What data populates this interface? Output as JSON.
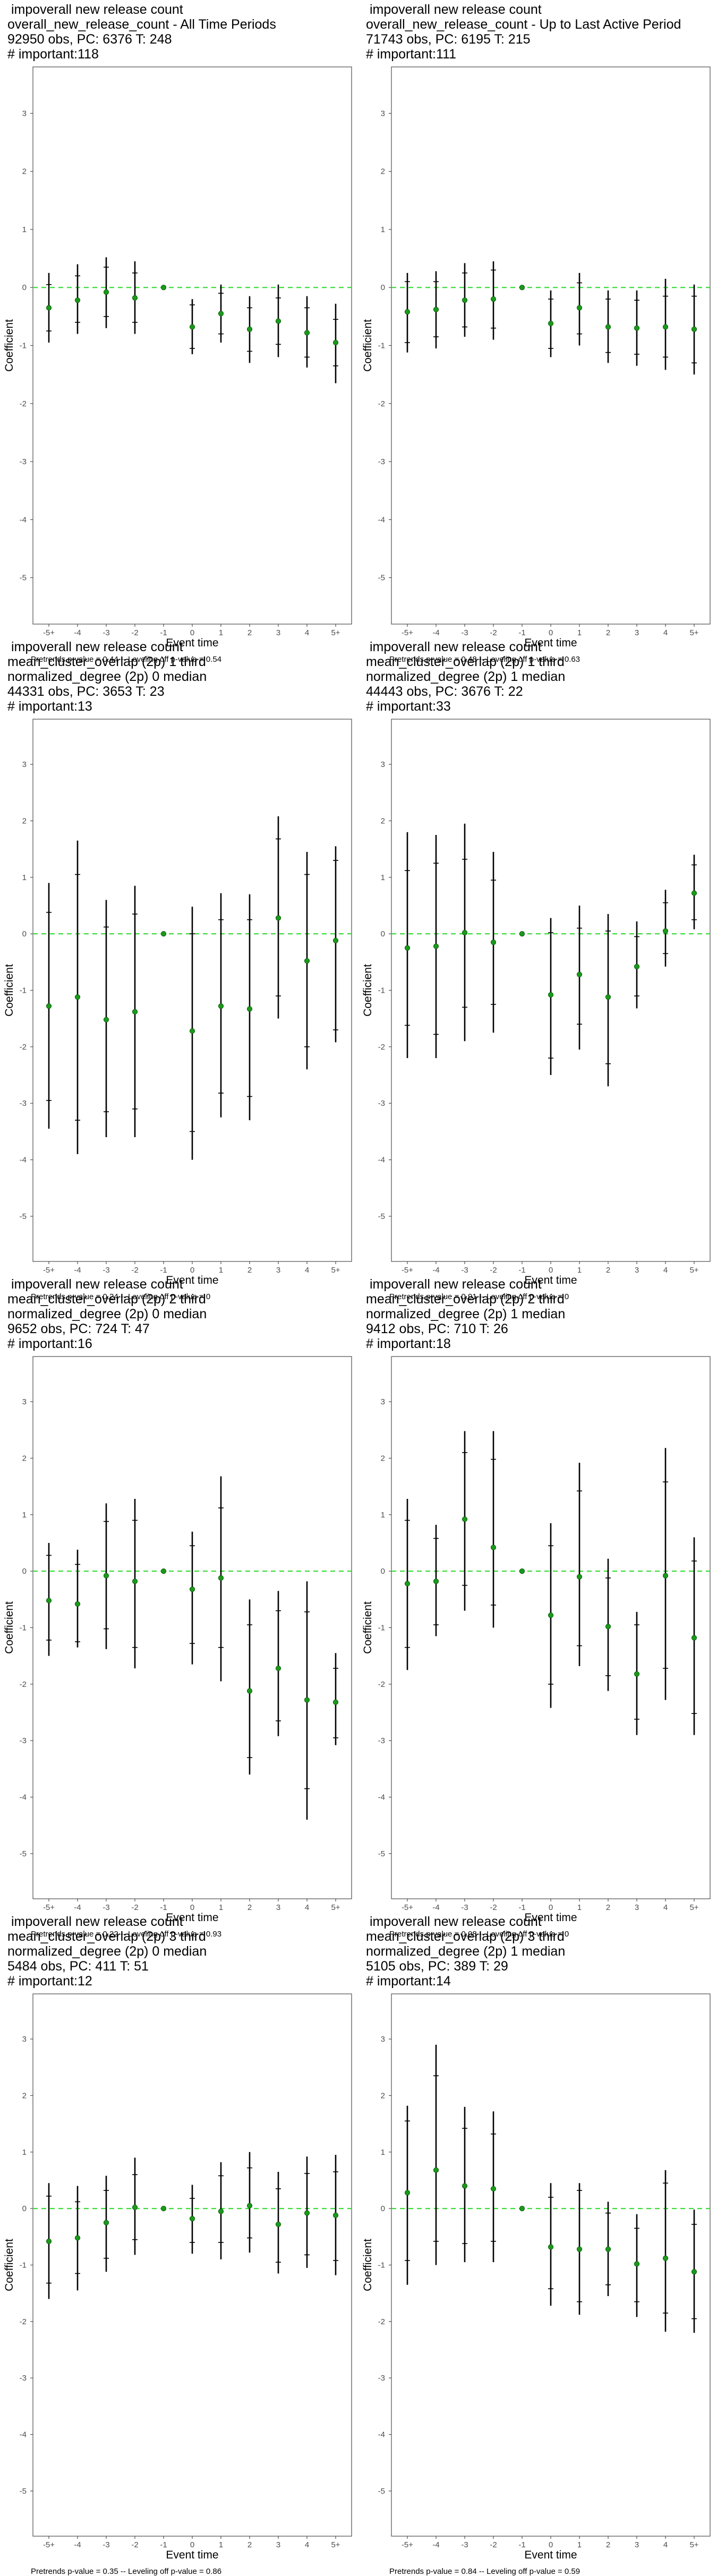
{
  "axes": {
    "xlabel": "Event time",
    "ylabel": "Coefficient",
    "x_ticks": [
      "-5+",
      "-4",
      "-3",
      "-2",
      "-1",
      "0",
      "1",
      "2",
      "3",
      "4",
      "5+"
    ],
    "y_ticks": [
      3,
      2,
      1,
      0,
      -1,
      -2,
      -3,
      -4,
      -5
    ],
    "ylim": [
      -5.8,
      3.8
    ]
  },
  "colors": {
    "point": "#1a9a1a",
    "reference_line": "#3ddc3d",
    "bar": "#000000",
    "frame": "#4d4d4d"
  },
  "chart_data": [
    {
      "type": "scatter",
      "title": [
        " impoverall new release count",
        "overall_new_release_count - All Time Periods",
        "92950 obs, PC: 6376 T: 248",
        "# important:118"
      ],
      "footer": "Pretrends p-value = 0.44 -- Leveling off p-value = 0.54",
      "x": [
        "-5+",
        "-4",
        "-3",
        "-2",
        "-1",
        "0",
        "1",
        "2",
        "3",
        "4",
        "5+"
      ],
      "y": [
        -0.35,
        -0.22,
        -0.08,
        -0.18,
        0,
        -0.68,
        -0.45,
        -0.72,
        -0.58,
        -0.78,
        -0.95
      ],
      "inner": [
        [
          -0.75,
          0.05
        ],
        [
          -0.6,
          0.2
        ],
        [
          -0.5,
          0.35
        ],
        [
          -0.6,
          0.25
        ],
        null,
        [
          -1.05,
          -0.3
        ],
        [
          -0.8,
          -0.1
        ],
        [
          -1.1,
          -0.35
        ],
        [
          -0.98,
          -0.18
        ],
        [
          -1.2,
          -0.35
        ],
        [
          -1.35,
          -0.55
        ]
      ],
      "outer": [
        [
          -0.95,
          0.25
        ],
        [
          -0.8,
          0.4
        ],
        [
          -0.7,
          0.52
        ],
        [
          -0.8,
          0.45
        ],
        null,
        [
          -1.15,
          -0.2
        ],
        [
          -0.95,
          0.05
        ],
        [
          -1.3,
          -0.15
        ],
        [
          -1.2,
          0.05
        ],
        [
          -1.38,
          -0.15
        ],
        [
          -1.65,
          -0.28
        ]
      ]
    },
    {
      "type": "scatter",
      "title": [
        " impoverall new release count",
        "overall_new_release_count - Up to Last Active Period",
        "71743 obs, PC: 6195 T: 215",
        "# important:111"
      ],
      "footer": "Pretrends p-value = 0.48 -- Leveling off p-value = 0.63",
      "x": [
        "-5+",
        "-4",
        "-3",
        "-2",
        "-1",
        "0",
        "1",
        "2",
        "3",
        "4",
        "5+"
      ],
      "y": [
        -0.42,
        -0.38,
        -0.22,
        -0.2,
        0,
        -0.62,
        -0.35,
        -0.68,
        -0.7,
        -0.68,
        -0.72
      ],
      "inner": [
        [
          -0.95,
          0.1
        ],
        [
          -0.85,
          0.1
        ],
        [
          -0.68,
          0.25
        ],
        [
          -0.7,
          0.3
        ],
        null,
        [
          -1.05,
          -0.2
        ],
        [
          -0.8,
          0.08
        ],
        [
          -1.12,
          -0.2
        ],
        [
          -1.15,
          -0.22
        ],
        [
          -1.2,
          -0.15
        ],
        [
          -1.3,
          -0.15
        ]
      ],
      "outer": [
        [
          -1.12,
          0.25
        ],
        [
          -1.05,
          0.28
        ],
        [
          -0.85,
          0.42
        ],
        [
          -0.9,
          0.45
        ],
        null,
        [
          -1.2,
          -0.05
        ],
        [
          -1.0,
          0.25
        ],
        [
          -1.3,
          -0.05
        ],
        [
          -1.35,
          -0.05
        ],
        [
          -1.42,
          0.15
        ],
        [
          -1.5,
          0.05
        ]
      ]
    },
    {
      "type": "scatter",
      "title": [
        " impoverall new release count",
        "mean_cluster_overlap (2p) 1 third",
        "normalized_degree (2p) 0 median",
        "44331 obs, PC: 3653 T: 23",
        "# important:13"
      ],
      "footer": "Pretrends p-value = 0.24 -- Leveling off p-value = 0",
      "x": [
        "-5+",
        "-4",
        "-3",
        "-2",
        "-1",
        "0",
        "1",
        "2",
        "3",
        "4",
        "5+"
      ],
      "y": [
        -1.28,
        -1.12,
        -1.52,
        -1.38,
        0,
        -1.72,
        -1.28,
        -1.33,
        0.28,
        -0.48,
        -0.12
      ],
      "inner": [
        [
          -2.95,
          0.38
        ],
        [
          -3.3,
          1.05
        ],
        [
          -3.15,
          0.12
        ],
        [
          -3.1,
          0.35
        ],
        null,
        [
          -3.5,
          0.0
        ],
        [
          -2.82,
          0.25
        ],
        [
          -2.88,
          0.25
        ],
        [
          -1.1,
          1.68
        ],
        [
          -2.0,
          1.05
        ],
        [
          -1.7,
          1.3
        ]
      ],
      "outer": [
        [
          -3.45,
          0.9
        ],
        [
          -3.9,
          1.65
        ],
        [
          -3.6,
          0.6
        ],
        [
          -3.6,
          0.85
        ],
        null,
        [
          -4.0,
          0.48
        ],
        [
          -3.25,
          0.72
        ],
        [
          -3.3,
          0.7
        ],
        [
          -1.5,
          2.08
        ],
        [
          -2.4,
          1.45
        ],
        [
          -1.92,
          1.55
        ]
      ]
    },
    {
      "type": "scatter",
      "title": [
        " impoverall new release count",
        "mean_cluster_overlap (2p) 1 third",
        "normalized_degree (2p) 1 median",
        "44443 obs, PC: 3676 T: 22",
        "# important:33"
      ],
      "footer": "Pretrends p-value = 0.91 -- Leveling off p-value = 0",
      "x": [
        "-5+",
        "-4",
        "-3",
        "-2",
        "-1",
        "0",
        "1",
        "2",
        "3",
        "4",
        "5+"
      ],
      "y": [
        -0.25,
        -0.22,
        0.02,
        -0.15,
        0,
        -1.08,
        -0.72,
        -1.12,
        -0.58,
        0.05,
        0.72
      ],
      "inner": [
        [
          -1.62,
          1.12
        ],
        [
          -1.78,
          1.25
        ],
        [
          -1.3,
          1.32
        ],
        [
          -1.25,
          0.95
        ],
        null,
        [
          -2.2,
          0.02
        ],
        [
          -1.6,
          0.1
        ],
        [
          -2.3,
          0.05
        ],
        [
          -1.1,
          -0.05
        ],
        [
          -0.35,
          0.55
        ],
        [
          0.25,
          1.22
        ]
      ],
      "outer": [
        [
          -2.2,
          1.8
        ],
        [
          -2.2,
          1.75
        ],
        [
          -1.9,
          1.95
        ],
        [
          -1.75,
          1.45
        ],
        null,
        [
          -2.5,
          0.28
        ],
        [
          -2.05,
          0.5
        ],
        [
          -2.7,
          0.35
        ],
        [
          -1.32,
          0.22
        ],
        [
          -0.58,
          0.78
        ],
        [
          0.08,
          1.4
        ]
      ]
    },
    {
      "type": "scatter",
      "title": [
        " impoverall new release count",
        "mean_cluster_overlap (2p) 2 third",
        "normalized_degree (2p) 0 median",
        "9652 obs, PC: 724 T: 47",
        "# important:16"
      ],
      "footer": "Pretrends p-value = 0.22 -- Leveling off p-value = 0.93",
      "x": [
        "-5+",
        "-4",
        "-3",
        "-2",
        "-1",
        "0",
        "1",
        "2",
        "3",
        "4",
        "5+"
      ],
      "y": [
        -0.52,
        -0.58,
        -0.08,
        -0.18,
        0,
        -0.32,
        -0.12,
        -2.12,
        -1.72,
        -2.28,
        -2.32
      ],
      "inner": [
        [
          -1.22,
          0.28
        ],
        [
          -1.25,
          0.12
        ],
        [
          -1.02,
          0.88
        ],
        [
          -1.35,
          0.9
        ],
        null,
        [
          -1.28,
          0.45
        ],
        [
          -1.35,
          1.12
        ],
        [
          -3.3,
          -0.95
        ],
        [
          -2.65,
          -0.7
        ],
        [
          -3.85,
          -0.72
        ],
        [
          -2.95,
          -1.72
        ]
      ],
      "outer": [
        [
          -1.5,
          0.5
        ],
        [
          -1.35,
          0.38
        ],
        [
          -1.38,
          1.2
        ],
        [
          -1.72,
          1.28
        ],
        null,
        [
          -1.65,
          0.7
        ],
        [
          -1.95,
          1.68
        ],
        [
          -3.6,
          -0.5
        ],
        [
          -2.92,
          -0.35
        ],
        [
          -4.4,
          -0.18
        ],
        [
          -3.08,
          -1.45
        ]
      ]
    },
    {
      "type": "scatter",
      "title": [
        " impoverall new release count",
        "mean_cluster_overlap (2p) 2 third",
        "normalized_degree (2p) 1 median",
        "9412 obs, PC: 710 T: 26",
        "# important:18"
      ],
      "footer": "Pretrends p-value = 0.08 -- Leveling off p-value = 0",
      "x": [
        "-5+",
        "-4",
        "-3",
        "-2",
        "-1",
        "0",
        "1",
        "2",
        "3",
        "4",
        "5+"
      ],
      "y": [
        -0.22,
        -0.18,
        0.92,
        0.42,
        0,
        -0.78,
        -0.1,
        -0.98,
        -1.82,
        -0.08,
        -1.18
      ],
      "inner": [
        [
          -1.35,
          0.9
        ],
        [
          -0.95,
          0.58
        ],
        [
          -0.25,
          2.1
        ],
        [
          -0.6,
          1.98
        ],
        null,
        [
          -2.0,
          0.45
        ],
        [
          -1.32,
          1.42
        ],
        [
          -1.85,
          -0.12
        ],
        [
          -2.62,
          -0.95
        ],
        [
          -1.72,
          1.58
        ],
        [
          -2.52,
          0.18
        ]
      ],
      "outer": [
        [
          -1.75,
          1.28
        ],
        [
          -1.15,
          0.82
        ],
        [
          -0.7,
          2.48
        ],
        [
          -1.0,
          2.48
        ],
        null,
        [
          -2.42,
          0.85
        ],
        [
          -1.68,
          1.92
        ],
        [
          -2.12,
          0.22
        ],
        [
          -2.9,
          -0.72
        ],
        [
          -2.28,
          2.18
        ],
        [
          -2.9,
          0.6
        ]
      ]
    },
    {
      "type": "scatter",
      "title": [
        " impoverall new release count",
        "mean_cluster_overlap (2p) 3 third",
        "normalized_degree (2p) 0 median",
        "5484 obs, PC: 411 T: 51",
        "# important:12"
      ],
      "footer": "Pretrends p-value = 0.35 -- Leveling off p-value = 0.86",
      "x": [
        "-5+",
        "-4",
        "-3",
        "-2",
        "-1",
        "0",
        "1",
        "2",
        "3",
        "4",
        "5+"
      ],
      "y": [
        -0.58,
        -0.52,
        -0.25,
        0.02,
        0,
        -0.18,
        -0.05,
        0.05,
        -0.28,
        -0.08,
        -0.12
      ],
      "inner": [
        [
          -1.32,
          0.22
        ],
        [
          -1.15,
          0.12
        ],
        [
          -0.88,
          0.32
        ],
        [
          -0.55,
          0.6
        ],
        null,
        [
          -0.6,
          0.18
        ],
        [
          -0.6,
          0.58
        ],
        [
          -0.52,
          0.72
        ],
        [
          -0.95,
          0.35
        ],
        [
          -0.82,
          0.62
        ],
        [
          -0.92,
          0.65
        ]
      ],
      "outer": [
        [
          -1.6,
          0.45
        ],
        [
          -1.45,
          0.4
        ],
        [
          -1.12,
          0.58
        ],
        [
          -0.82,
          0.9
        ],
        null,
        [
          -0.8,
          0.42
        ],
        [
          -0.9,
          0.82
        ],
        [
          -0.78,
          1.0
        ],
        [
          -1.15,
          0.65
        ],
        [
          -1.05,
          0.92
        ],
        [
          -1.18,
          0.95
        ]
      ]
    },
    {
      "type": "scatter",
      "title": [
        " impoverall new release count",
        "mean_cluster_overlap (2p) 3 third",
        "normalized_degree (2p) 1 median",
        "5105 obs, PC: 389 T: 29",
        "# important:14"
      ],
      "footer": "Pretrends p-value = 0.84 -- Leveling off p-value = 0.59",
      "x": [
        "-5+",
        "-4",
        "-3",
        "-2",
        "-1",
        "0",
        "1",
        "2",
        "3",
        "4",
        "5+"
      ],
      "y": [
        0.28,
        0.68,
        0.4,
        0.35,
        0,
        -0.68,
        -0.72,
        -0.72,
        -0.98,
        -0.88,
        -1.12
      ],
      "inner": [
        [
          -0.92,
          1.55
        ],
        [
          -0.58,
          2.35
        ],
        [
          -0.62,
          1.42
        ],
        [
          -0.58,
          1.32
        ],
        null,
        [
          -1.42,
          0.2
        ],
        [
          -1.65,
          0.32
        ],
        [
          -1.35,
          -0.08
        ],
        [
          -1.65,
          -0.35
        ],
        [
          -1.85,
          0.45
        ],
        [
          -1.95,
          -0.28
        ]
      ],
      "outer": [
        [
          -1.35,
          1.82
        ],
        [
          -1.0,
          2.9
        ],
        [
          -0.95,
          1.8
        ],
        [
          -0.95,
          1.72
        ],
        null,
        [
          -1.72,
          0.45
        ],
        [
          -1.88,
          0.45
        ],
        [
          -1.55,
          0.12
        ],
        [
          -1.92,
          -0.1
        ],
        [
          -2.18,
          0.68
        ],
        [
          -2.2,
          -0.02
        ]
      ]
    }
  ]
}
